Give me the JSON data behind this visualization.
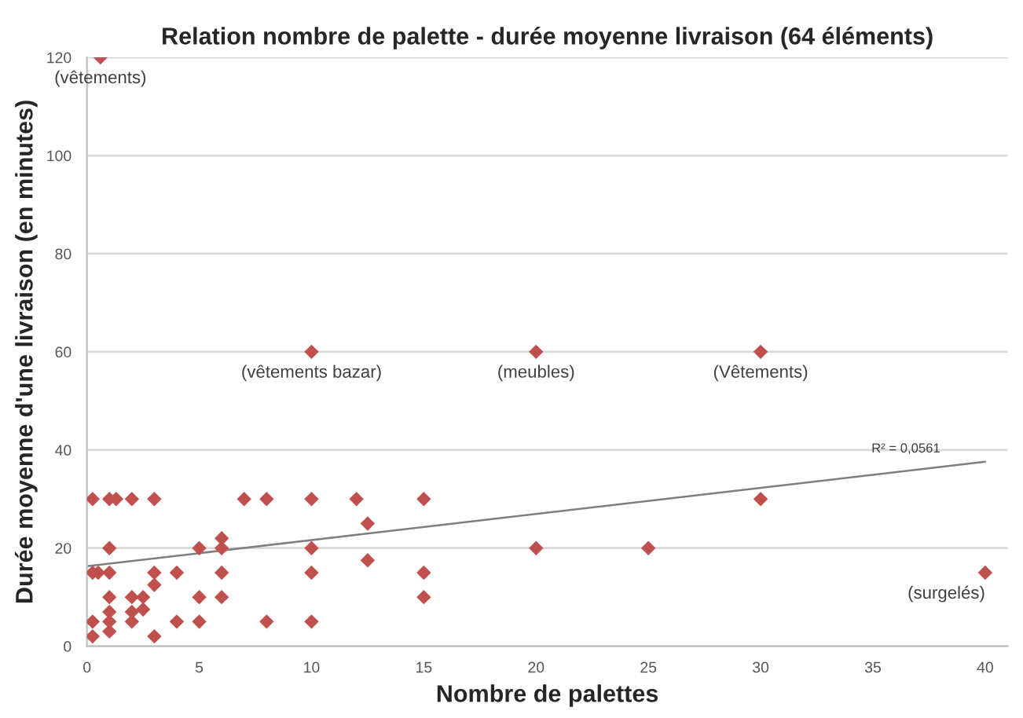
{
  "chart_data": {
    "type": "scatter",
    "title": "Relation nombre de palette - durée moyenne livraison (64 éléments)",
    "xlabel": "Nombre de palettes",
    "ylabel": "Durée moyenne d'une livraison (en minutes)",
    "xlim": [
      0,
      41
    ],
    "ylim": [
      0,
      120
    ],
    "xticks": [
      0,
      5,
      10,
      15,
      20,
      25,
      30,
      35,
      40
    ],
    "yticks": [
      0,
      20,
      40,
      60,
      80,
      100,
      120
    ],
    "grid": "y",
    "legend": false,
    "series": [
      {
        "marker": "diamond",
        "color": "#c0504d",
        "x": [
          0.25,
          1,
          1.3,
          2,
          3,
          7,
          8,
          10,
          12,
          15,
          30,
          1,
          5,
          6,
          10,
          20,
          25,
          6,
          12.5,
          12.5,
          0.25,
          0.5,
          1,
          3,
          4,
          6,
          10,
          15,
          40,
          3,
          1,
          2,
          2.5,
          5,
          6,
          15,
          2.5,
          1,
          2,
          0.25,
          1,
          2,
          4,
          5,
          8,
          10,
          1,
          0.25,
          3,
          0.6,
          10,
          20,
          30
        ],
        "values": [
          30,
          30,
          30,
          30,
          30,
          30,
          30,
          30,
          30,
          30,
          30,
          20,
          20,
          20,
          20,
          20,
          20,
          22,
          25,
          17.5,
          15,
          15,
          15,
          15,
          15,
          15,
          15,
          15,
          15,
          12.5,
          10,
          10,
          10,
          10,
          10,
          10,
          7.5,
          7,
          7,
          5,
          5,
          5,
          5,
          5,
          5,
          5,
          3,
          2,
          2,
          120,
          60,
          60,
          60
        ]
      },
      {
        "type": "line",
        "color": "#7f7f7f",
        "x": [
          0,
          40
        ],
        "values": [
          16.3,
          37.6
        ]
      }
    ],
    "annotations": [
      {
        "text": "(vêtements)",
        "x": 0.6,
        "y": 120
      },
      {
        "text": "(vêtements bazar)",
        "x": 10,
        "y": 60
      },
      {
        "text": "(meubles)",
        "x": 20,
        "y": 60
      },
      {
        "text": "(Vêtements)",
        "x": 30,
        "y": 60
      },
      {
        "text": "(surgelés)",
        "x": 40,
        "y": 15
      },
      {
        "text": "R² = 0,0561",
        "x": 38,
        "y": 37.6
      }
    ]
  }
}
